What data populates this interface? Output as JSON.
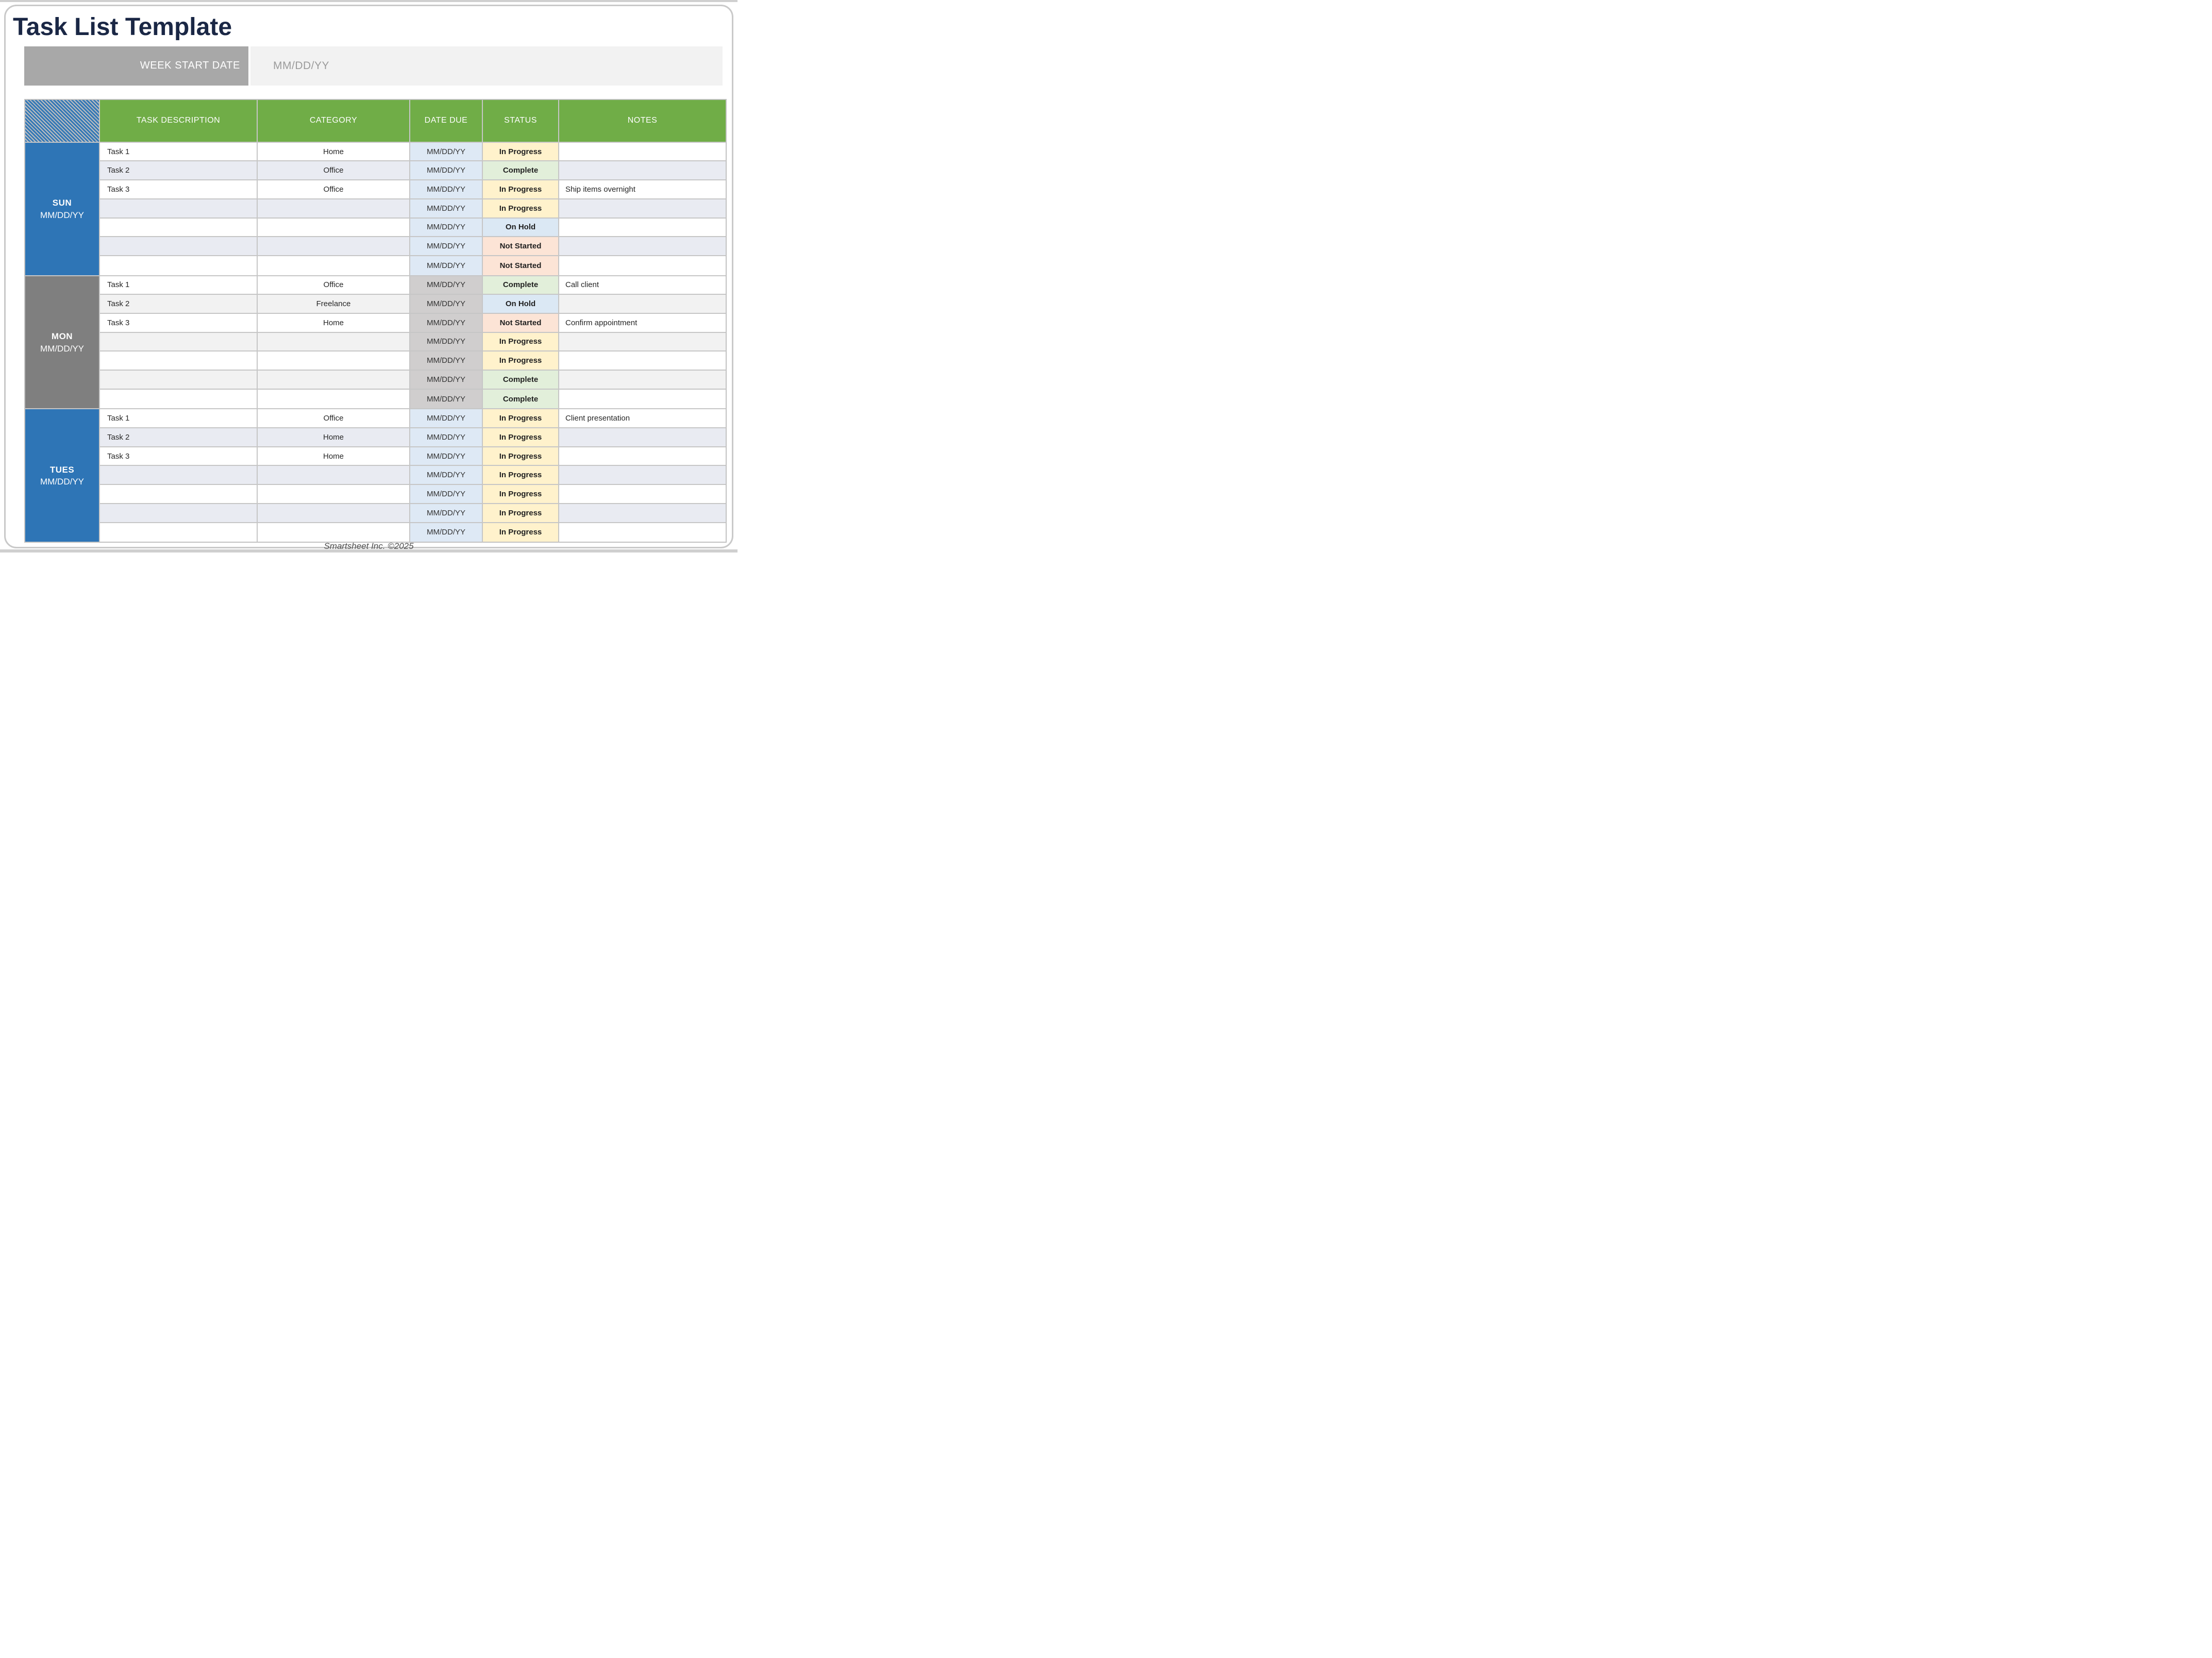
{
  "page": {
    "title": "Task List Template",
    "footer": "Smartsheet Inc. ©2025"
  },
  "week_bar": {
    "label": "WEEK START DATE",
    "value": "MM/DD/YY"
  },
  "table": {
    "headers": {
      "task": "TASK DESCRIPTION",
      "category": "CATEGORY",
      "date": "DATE DUE",
      "status": "STATUS",
      "notes": "NOTES"
    },
    "status_colors": {
      "In Progress": "#FFF2CC",
      "Complete": "#E2EFDA",
      "On Hold": "#DBE8F4",
      "Not Started": "#FCE4D6"
    },
    "sections": [
      {
        "day": "SUN",
        "date": "MM/DD/YY",
        "theme": "blue",
        "rows": [
          {
            "task": "Task 1",
            "category": "Home",
            "due": "MM/DD/YY",
            "status": "In Progress",
            "notes": ""
          },
          {
            "task": "Task 2",
            "category": "Office",
            "due": "MM/DD/YY",
            "status": "Complete",
            "notes": ""
          },
          {
            "task": "Task 3",
            "category": "Office",
            "due": "MM/DD/YY",
            "status": "In Progress",
            "notes": "Ship items overnight"
          },
          {
            "task": "",
            "category": "",
            "due": "MM/DD/YY",
            "status": "In Progress",
            "notes": ""
          },
          {
            "task": "",
            "category": "",
            "due": "MM/DD/YY",
            "status": "On Hold",
            "notes": ""
          },
          {
            "task": "",
            "category": "",
            "due": "MM/DD/YY",
            "status": "Not Started",
            "notes": ""
          },
          {
            "task": "",
            "category": "",
            "due": "MM/DD/YY",
            "status": "Not Started",
            "notes": ""
          }
        ]
      },
      {
        "day": "MON",
        "date": "MM/DD/YY",
        "theme": "gray",
        "rows": [
          {
            "task": "Task 1",
            "category": "Office",
            "due": "MM/DD/YY",
            "status": "Complete",
            "notes": "Call client"
          },
          {
            "task": "Task 2",
            "category": "Freelance",
            "due": "MM/DD/YY",
            "status": "On Hold",
            "notes": ""
          },
          {
            "task": "Task 3",
            "category": "Home",
            "due": "MM/DD/YY",
            "status": "Not Started",
            "notes": "Confirm appointment"
          },
          {
            "task": "",
            "category": "",
            "due": "MM/DD/YY",
            "status": "In Progress",
            "notes": ""
          },
          {
            "task": "",
            "category": "",
            "due": "MM/DD/YY",
            "status": "In Progress",
            "notes": ""
          },
          {
            "task": "",
            "category": "",
            "due": "MM/DD/YY",
            "status": "Complete",
            "notes": ""
          },
          {
            "task": "",
            "category": "",
            "due": "MM/DD/YY",
            "status": "Complete",
            "notes": ""
          }
        ]
      },
      {
        "day": "TUES",
        "date": "MM/DD/YY",
        "theme": "blue",
        "rows": [
          {
            "task": "Task 1",
            "category": "Office",
            "due": "MM/DD/YY",
            "status": "In Progress",
            "notes": "Client presentation"
          },
          {
            "task": "Task 2",
            "category": "Home",
            "due": "MM/DD/YY",
            "status": "In Progress",
            "notes": ""
          },
          {
            "task": "Task 3",
            "category": "Home",
            "due": "MM/DD/YY",
            "status": "In Progress",
            "notes": ""
          },
          {
            "task": "",
            "category": "",
            "due": "MM/DD/YY",
            "status": "In Progress",
            "notes": ""
          },
          {
            "task": "",
            "category": "",
            "due": "MM/DD/YY",
            "status": "In Progress",
            "notes": ""
          },
          {
            "task": "",
            "category": "",
            "due": "MM/DD/YY",
            "status": "In Progress",
            "notes": ""
          },
          {
            "task": "",
            "category": "",
            "due": "MM/DD/YY",
            "status": "In Progress",
            "notes": ""
          }
        ]
      }
    ]
  },
  "colors": {
    "header_green": "#70AD47",
    "day_blue": "#2E75B6",
    "day_gray": "#7F7F7F",
    "zebra_blue": "#E9EBF2",
    "zebra_gray": "#F2F2F2",
    "date_blue": "#DEE9F5",
    "date_gray": "#D0CECE",
    "title_navy": "#1A2745",
    "bar_gray": "#A8A8A8",
    "border_gray": "#C6C6C6"
  }
}
